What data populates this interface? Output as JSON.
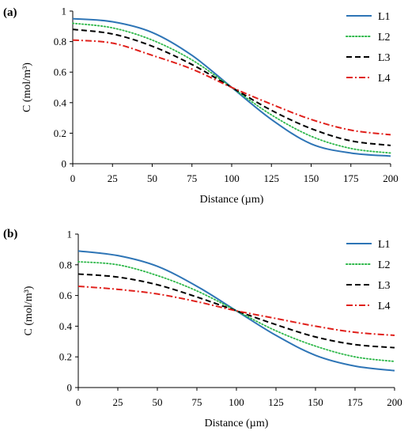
{
  "chart_data": [
    {
      "type": "line",
      "panel_label": "(a)",
      "xlabel": "Distance (µm)",
      "ylabel": "C (mol/m³)",
      "xlim": [
        0,
        200
      ],
      "ylim": [
        0,
        1
      ],
      "xticks": [
        0,
        25,
        50,
        75,
        100,
        125,
        150,
        175,
        200
      ],
      "yticks": [
        0,
        0.2,
        0.4,
        0.6,
        0.8,
        1
      ],
      "ytick_labels": [
        "0",
        "0.2",
        "0.4",
        "0.6",
        "0.8",
        "1"
      ],
      "grid": false,
      "legend_position": "top-right",
      "x": [
        0,
        25,
        50,
        75,
        100,
        125,
        150,
        175,
        200
      ],
      "series": [
        {
          "name": "L1",
          "color": "#2E75B6",
          "dash": "solid",
          "values": [
            0.95,
            0.93,
            0.86,
            0.71,
            0.5,
            0.29,
            0.13,
            0.07,
            0.05
          ]
        },
        {
          "name": "L2",
          "color": "#2EB84A",
          "dash": "dot",
          "values": [
            0.92,
            0.89,
            0.81,
            0.68,
            0.5,
            0.32,
            0.18,
            0.1,
            0.07
          ]
        },
        {
          "name": "L3",
          "color": "#000000",
          "dash": "dash",
          "values": [
            0.88,
            0.85,
            0.77,
            0.65,
            0.5,
            0.35,
            0.23,
            0.15,
            0.12
          ]
        },
        {
          "name": "L4",
          "color": "#E0201B",
          "dash": "dashdot",
          "values": [
            0.81,
            0.79,
            0.71,
            0.62,
            0.5,
            0.39,
            0.29,
            0.22,
            0.19
          ]
        }
      ]
    },
    {
      "type": "line",
      "panel_label": "(b)",
      "xlabel": "Distance (µm)",
      "ylabel": "C (mol/m³)",
      "xlim": [
        0,
        200
      ],
      "ylim": [
        0,
        1
      ],
      "xticks": [
        0,
        25,
        50,
        75,
        100,
        125,
        150,
        175,
        200
      ],
      "yticks": [
        0,
        0.2,
        0.4,
        0.6,
        0.8,
        1
      ],
      "ytick_labels": [
        "0",
        "0.2",
        "0.4",
        "0.6",
        "0.8",
        "1"
      ],
      "grid": false,
      "legend_position": "top-right",
      "x": [
        0,
        25,
        50,
        75,
        100,
        125,
        150,
        175,
        200
      ],
      "series": [
        {
          "name": "L1",
          "color": "#2E75B6",
          "dash": "solid",
          "values": [
            0.89,
            0.86,
            0.79,
            0.66,
            0.5,
            0.34,
            0.21,
            0.14,
            0.11
          ]
        },
        {
          "name": "L2",
          "color": "#2EB84A",
          "dash": "dot",
          "values": [
            0.82,
            0.8,
            0.73,
            0.63,
            0.5,
            0.37,
            0.27,
            0.2,
            0.17
          ]
        },
        {
          "name": "L3",
          "color": "#000000",
          "dash": "dash",
          "values": [
            0.74,
            0.72,
            0.67,
            0.59,
            0.5,
            0.41,
            0.33,
            0.28,
            0.26
          ]
        },
        {
          "name": "L4",
          "color": "#E0201B",
          "dash": "dashdot",
          "values": [
            0.66,
            0.64,
            0.61,
            0.56,
            0.5,
            0.45,
            0.4,
            0.36,
            0.34
          ]
        }
      ]
    }
  ]
}
